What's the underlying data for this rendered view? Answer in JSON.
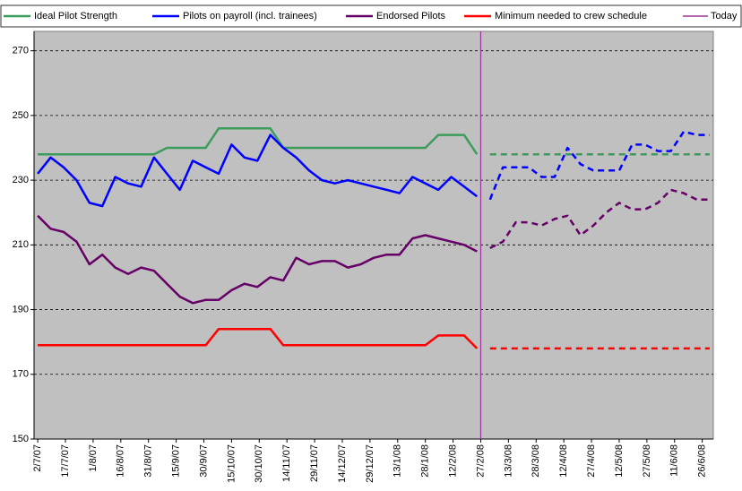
{
  "chart_data": {
    "type": "line",
    "legend": "top",
    "grid": true,
    "xlim": [
      -2,
      366
    ],
    "xticks": [
      {
        "value": 0,
        "label": "2/7/07"
      },
      {
        "value": 15,
        "label": "17/7/07"
      },
      {
        "value": 30,
        "label": "1/8/07"
      },
      {
        "value": 45,
        "label": "16/8/07"
      },
      {
        "value": 60,
        "label": "31/8/07"
      },
      {
        "value": 75,
        "label": "15/9/07"
      },
      {
        "value": 90,
        "label": "30/9/07"
      },
      {
        "value": 105,
        "label": "15/10/07"
      },
      {
        "value": 120,
        "label": "30/10/07"
      },
      {
        "value": 135,
        "label": "14/11/07"
      },
      {
        "value": 150,
        "label": "29/11/07"
      },
      {
        "value": 165,
        "label": "14/12/07"
      },
      {
        "value": 180,
        "label": "29/12/07"
      },
      {
        "value": 195,
        "label": "13/1/08"
      },
      {
        "value": 210,
        "label": "28/1/08"
      },
      {
        "value": 225,
        "label": "12/2/08"
      },
      {
        "value": 240,
        "label": "27/2/08"
      },
      {
        "value": 255,
        "label": "13/3/08"
      },
      {
        "value": 270,
        "label": "28/3/08"
      },
      {
        "value": 285,
        "label": "12/4/08"
      },
      {
        "value": 300,
        "label": "27/4/08"
      },
      {
        "value": 315,
        "label": "12/5/08"
      },
      {
        "value": 330,
        "label": "27/5/08"
      },
      {
        "value": 345,
        "label": "11/6/08"
      },
      {
        "value": 360,
        "label": "26/6/08"
      }
    ],
    "ylim": [
      150,
      276
    ],
    "yticks": [
      150,
      170,
      190,
      210,
      230,
      250,
      270
    ],
    "x": [
      0,
      7,
      14,
      21,
      28,
      35,
      42,
      49,
      56,
      63,
      70,
      77,
      84,
      91,
      98,
      105,
      112,
      119,
      126,
      133,
      140,
      147,
      154,
      161,
      168,
      175,
      182,
      189,
      196,
      203,
      210,
      217,
      224,
      231,
      238,
      245,
      252,
      259,
      266,
      273,
      280,
      287,
      294,
      301,
      308,
      315,
      322,
      329,
      336,
      343,
      350,
      357,
      364
    ],
    "today": {
      "name": "Today",
      "color": "#993399",
      "x": 240
    },
    "series": [
      {
        "name": "Ideal Pilot Strength",
        "color": "#3c9c5c",
        "values": [
          238,
          238,
          238,
          238,
          238,
          238,
          238,
          238,
          238,
          238,
          240,
          240,
          240,
          240,
          246,
          246,
          246,
          246,
          246,
          240,
          240,
          240,
          240,
          240,
          240,
          240,
          240,
          240,
          240,
          240,
          240,
          244,
          244,
          244,
          238,
          238,
          238,
          238,
          238,
          238,
          238,
          238,
          238,
          238,
          238,
          238,
          238,
          238,
          238,
          238,
          238,
          238,
          238
        ]
      },
      {
        "name": "Pilots on payroll (incl. trainees)",
        "color": "#0000ff",
        "values": [
          232,
          237,
          234,
          230,
          223,
          222,
          231,
          229,
          228,
          237,
          232,
          227,
          236,
          234,
          232,
          241,
          237,
          236,
          244,
          240,
          237,
          233,
          230,
          229,
          230,
          229,
          228,
          227,
          226,
          231,
          229,
          227,
          231,
          228,
          225,
          224,
          234,
          234,
          234,
          231,
          231,
          240,
          235,
          233,
          233,
          233,
          241,
          241,
          239,
          239,
          245,
          244,
          244
        ]
      },
      {
        "name": "Endorsed Pilots",
        "color": "#660066",
        "values": [
          219,
          215,
          214,
          211,
          204,
          207,
          203,
          201,
          203,
          202,
          198,
          194,
          192,
          193,
          193,
          196,
          198,
          197,
          200,
          199,
          206,
          204,
          205,
          205,
          203,
          204,
          206,
          207,
          207,
          212,
          213,
          212,
          211,
          210,
          208,
          209,
          211,
          217,
          217,
          216,
          218,
          219,
          213,
          216,
          220,
          223,
          221,
          221,
          223,
          227,
          226,
          224,
          224
        ]
      },
      {
        "name": "Minimum needed to crew schedule",
        "color": "#ff0000",
        "values": [
          179,
          179,
          179,
          179,
          179,
          179,
          179,
          179,
          179,
          179,
          179,
          179,
          179,
          179,
          184,
          184,
          184,
          184,
          184,
          179,
          179,
          179,
          179,
          179,
          179,
          179,
          179,
          179,
          179,
          179,
          179,
          182,
          182,
          182,
          178,
          178,
          178,
          178,
          178,
          178,
          178,
          178,
          178,
          178,
          178,
          178,
          178,
          178,
          178,
          178,
          178,
          178,
          178
        ]
      }
    ]
  }
}
